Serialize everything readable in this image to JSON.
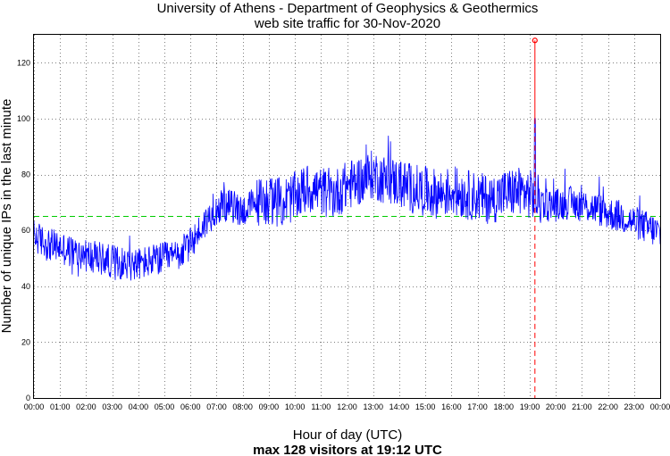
{
  "chart_data": {
    "type": "line",
    "title": "University of Athens - Department of Geophysics & Geothermics",
    "subtitle": "web site traffic for 30-Nov-2020",
    "xlabel": "Hour of day (UTC)",
    "ylabel": "Number of unique IPs in the last minute",
    "footnote": "max 128 visitors at 19:12 UTC",
    "xlim": [
      0,
      24
    ],
    "ylim": [
      0,
      130
    ],
    "x_ticks": [
      "00:00",
      "01:00",
      "02:00",
      "03:00",
      "04:00",
      "05:00",
      "06:00",
      "07:00",
      "08:00",
      "09:00",
      "10:00",
      "11:00",
      "12:00",
      "13:00",
      "14:00",
      "15:00",
      "16:00",
      "17:00",
      "18:00",
      "19:00",
      "20:00",
      "21:00",
      "22:00",
      "23:00",
      "00:00"
    ],
    "y_ticks": [
      0,
      20,
      40,
      60,
      80,
      100,
      120
    ],
    "grid": true,
    "average": 65,
    "max": {
      "hour": 19.2,
      "value": 128
    },
    "series": [
      {
        "color": "#0000ff",
        "x": [
          0,
          0.5,
          1,
          1.5,
          2,
          2.5,
          3,
          3.5,
          4,
          4.5,
          5,
          5.5,
          6,
          6.5,
          7,
          7.5,
          8,
          8.5,
          9,
          9.5,
          10,
          10.5,
          11,
          11.5,
          12,
          12.5,
          13,
          13.5,
          14,
          14.5,
          15,
          15.5,
          16,
          16.5,
          17,
          17.5,
          18,
          18.5,
          19,
          19.5,
          20,
          20.5,
          21,
          21.5,
          22,
          22.5,
          23,
          23.5,
          24
        ],
        "y": [
          58,
          55,
          54,
          52,
          51,
          50,
          49,
          48,
          48,
          49,
          50,
          51,
          55,
          62,
          68,
          69,
          67,
          70,
          71,
          70,
          72,
          75,
          74,
          73,
          76,
          78,
          80,
          78,
          77,
          75,
          74,
          73,
          74,
          73,
          72,
          71,
          73,
          74,
          73,
          70,
          69,
          70,
          69,
          68,
          66,
          65,
          63,
          61,
          59
        ]
      }
    ],
    "colors": {
      "series": "#0000ff",
      "average_line": "#00cc00",
      "max_marker": "#ff0000",
      "max_dashed": "#ff0000"
    }
  }
}
